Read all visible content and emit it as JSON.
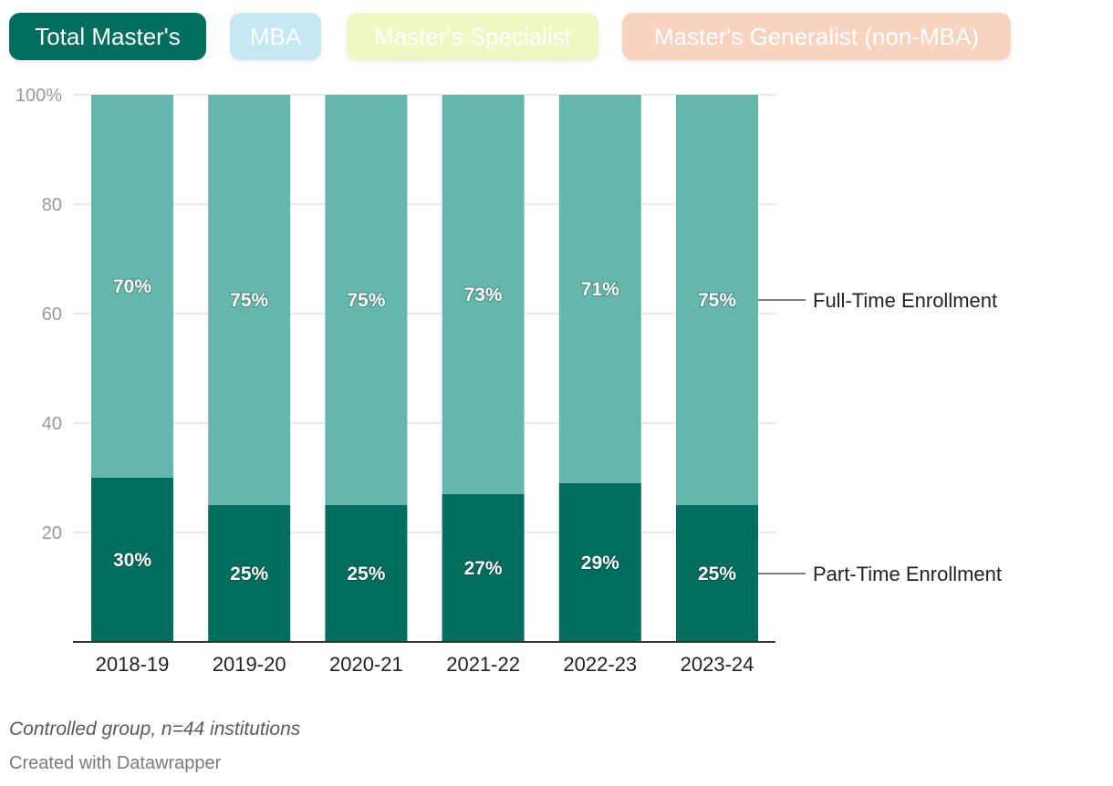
{
  "tabs": [
    {
      "label": "Total Master's",
      "color": "#006e5f",
      "active": true
    },
    {
      "label": "MBA",
      "color": "#c6e8f4",
      "active": false
    },
    {
      "label": "Master's Specialist",
      "color": "#eef8c2",
      "active": false
    },
    {
      "label": "Master's Generalist (non-MBA)",
      "color": "#f7d3c0",
      "active": false
    }
  ],
  "chart_data": {
    "type": "bar",
    "stacked": true,
    "categories": [
      "2018-19",
      "2019-20",
      "2020-21",
      "2021-22",
      "2022-23",
      "2023-24"
    ],
    "series": [
      {
        "name": "Part-Time Enrollment",
        "values": [
          30,
          25,
          25,
          27,
          29,
          25
        ],
        "labels": [
          "30%",
          "25%",
          "25%",
          "27%",
          "29%",
          "25%"
        ],
        "color": "#006e5f"
      },
      {
        "name": "Full-Time Enrollment",
        "values": [
          70,
          75,
          75,
          73,
          71,
          75
        ],
        "labels": [
          "70%",
          "75%",
          "75%",
          "73%",
          "71%",
          "75%"
        ],
        "color": "#66b7ab"
      }
    ],
    "ylim": [
      0,
      100
    ],
    "yticks": [
      "20",
      "40",
      "60",
      "80",
      "100%"
    ],
    "ytick_values": [
      20,
      40,
      60,
      80,
      100
    ],
    "grid": true,
    "legend": "direct labels on right"
  },
  "notes": "Controlled group, n=44 institutions",
  "credit": "Created with Datawrapper"
}
